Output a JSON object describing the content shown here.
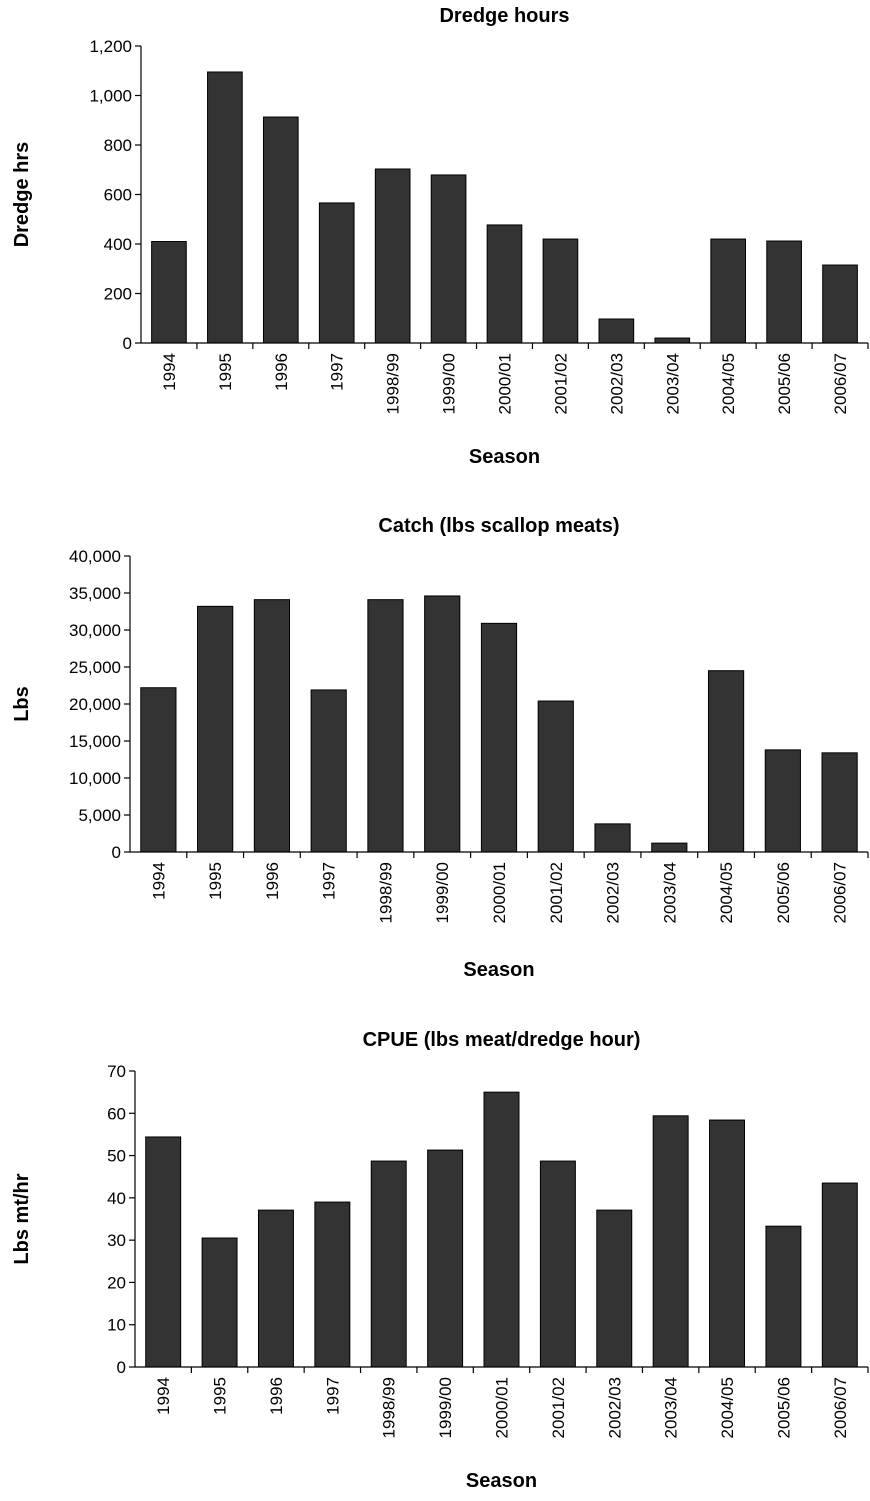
{
  "chart_data": [
    {
      "type": "bar",
      "title": "Dredge hours",
      "x_label": "Season",
      "y_label": "Dredge hrs",
      "color": "#333333",
      "categories": [
        "1994",
        "1995",
        "1996",
        "1997",
        "1998/99",
        "1999/00",
        "2000/01",
        "2001/02",
        "2002/03",
        "2003/04",
        "2004/05",
        "2005/06",
        "2006/07"
      ],
      "values": [
        410,
        1095,
        913,
        566,
        703,
        679,
        477,
        420,
        97,
        20,
        420,
        412,
        315
      ],
      "ylim": [
        0,
        1200
      ],
      "yticks": [
        0,
        200,
        400,
        600,
        800,
        {
          "value": 1000,
          "label": "1,000"
        },
        {
          "value": 1200,
          "label": "1,200"
        }
      ]
    },
    {
      "type": "bar",
      "title": "Catch (lbs scallop meats)",
      "x_label": "Season",
      "y_label": "Lbs",
      "color": "#333333",
      "categories": [
        "1994",
        "1995",
        "1996",
        "1997",
        "1998/99",
        "1999/00",
        "2000/01",
        "2001/02",
        "2002/03",
        "2003/04",
        "2004/05",
        "2005/06",
        "2006/07"
      ],
      "values": [
        22200,
        33200,
        34100,
        21900,
        34100,
        34600,
        30900,
        20400,
        3800,
        1200,
        24500,
        13800,
        13400
      ],
      "ylim": [
        0,
        40000
      ],
      "yticks": [
        0,
        {
          "value": 5000,
          "label": "5,000"
        },
        {
          "value": 10000,
          "label": "10,000"
        },
        {
          "value": 15000,
          "label": "15,000"
        },
        {
          "value": 20000,
          "label": "20,000"
        },
        {
          "value": 25000,
          "label": "25,000"
        },
        {
          "value": 30000,
          "label": "30,000"
        },
        {
          "value": 35000,
          "label": "35,000"
        },
        {
          "value": 40000,
          "label": "40,000"
        }
      ]
    },
    {
      "type": "bar",
      "title": "CPUE (lbs meat/dredge hour)",
      "x_label": "Season",
      "y_label": "Lbs mt/hr",
      "color": "#333333",
      "categories": [
        "1994",
        "1995",
        "1996",
        "1997",
        "1998/99",
        "1999/00",
        "2000/01",
        "2001/02",
        "2002/03",
        "2003/04",
        "2004/05",
        "2005/06",
        "2006/07"
      ],
      "values": [
        54.4,
        30.5,
        37.1,
        39,
        48.7,
        51.3,
        65,
        48.7,
        37.1,
        59.4,
        58.4,
        33.3,
        43.5
      ],
      "ylim": [
        0,
        70
      ],
      "yticks": [
        0,
        10,
        20,
        30,
        40,
        50,
        60,
        70
      ]
    }
  ]
}
